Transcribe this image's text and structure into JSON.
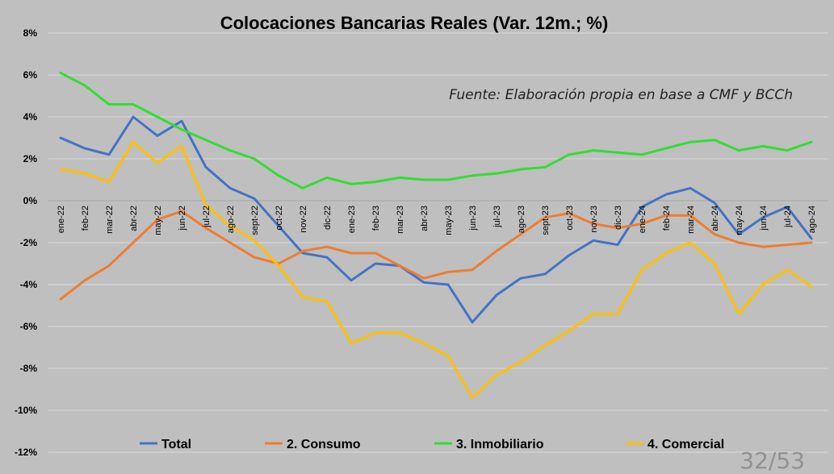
{
  "page": {
    "number_label": "32/53"
  },
  "chart_data": {
    "type": "line",
    "title": "Colocaciones Bancarias Reales (Var. 12m.; %)",
    "annotation": "Fuente: Elaboración propia en base a CMF y BCCh",
    "xlabel": "",
    "ylabel": "",
    "ylim": [
      -12,
      8
    ],
    "y_ticks": [
      8,
      6,
      4,
      2,
      0,
      -2,
      -4,
      -6,
      -8,
      -10,
      -12
    ],
    "y_tick_labels": [
      "8%",
      "6%",
      "4%",
      "2%",
      "0%",
      "-2%",
      "-4%",
      "-6%",
      "-8%",
      "-10%",
      "-12%"
    ],
    "grid": true,
    "legend_position": "bottom",
    "categories": [
      "ene-22",
      "feb-22",
      "mar-22",
      "abr-22",
      "may-22",
      "jun-22",
      "jul-22",
      "ago-22",
      "sept-22",
      "oct-22",
      "nov-22",
      "dic-22",
      "ene-23",
      "feb-23",
      "mar-23",
      "abr-23",
      "may-23",
      "jun-23",
      "jul-23",
      "ago-23",
      "sept-23",
      "oct-23",
      "nov-23",
      "dic-23",
      "ene-24",
      "feb-24",
      "mar-24",
      "abr-24",
      "may-24",
      "jun-24",
      "jul-24",
      "ago-24"
    ],
    "series": [
      {
        "name": "Total",
        "color": "#4472c4",
        "values": [
          3.0,
          2.5,
          2.2,
          4.0,
          3.1,
          3.8,
          1.6,
          0.6,
          0.1,
          -1.2,
          -2.5,
          -2.7,
          -3.8,
          -3.0,
          -3.1,
          -3.9,
          -4.0,
          -5.8,
          -4.5,
          -3.7,
          -3.5,
          -2.6,
          -1.9,
          -2.1,
          -0.3,
          0.3,
          0.6,
          -0.1,
          -1.6,
          -0.8,
          -0.3,
          -1.8
        ]
      },
      {
        "name": "2. Consumo",
        "color": "#ed7d31",
        "values": [
          -4.7,
          -3.8,
          -3.1,
          -2.0,
          -0.9,
          -0.5,
          -1.3,
          -2.0,
          -2.7,
          -3.0,
          -2.4,
          -2.2,
          -2.5,
          -2.5,
          -3.1,
          -3.7,
          -3.4,
          -3.3,
          -2.4,
          -1.6,
          -0.8,
          -0.6,
          -1.1,
          -1.3,
          -1.1,
          -0.7,
          -0.7,
          -1.6,
          -2.0,
          -2.2,
          -2.1,
          -2.0
        ]
      },
      {
        "name": "3. Inmobiliario",
        "color": "#33dd33",
        "values": [
          6.1,
          5.5,
          4.6,
          4.6,
          4.0,
          3.4,
          2.9,
          2.4,
          2.0,
          1.2,
          0.6,
          1.1,
          0.8,
          0.9,
          1.1,
          1.0,
          1.0,
          1.2,
          1.3,
          1.5,
          1.6,
          2.2,
          2.4,
          2.3,
          2.2,
          2.5,
          2.8,
          2.9,
          2.4,
          2.6,
          2.4,
          2.8
        ]
      },
      {
        "name": "4. Comercial",
        "color": "#ffc000",
        "values": [
          1.5,
          1.3,
          0.9,
          2.8,
          1.8,
          2.6,
          -0.2,
          -1.2,
          -1.9,
          -3.1,
          -4.6,
          -4.8,
          -6.8,
          -6.3,
          -6.3,
          -6.8,
          -7.4,
          -9.4,
          -8.3,
          -7.7,
          -6.9,
          -6.2,
          -5.4,
          -5.4,
          -3.3,
          -2.5,
          -2.0,
          -3.0,
          -5.4,
          -4.0,
          -3.3,
          -4.1
        ]
      }
    ]
  }
}
